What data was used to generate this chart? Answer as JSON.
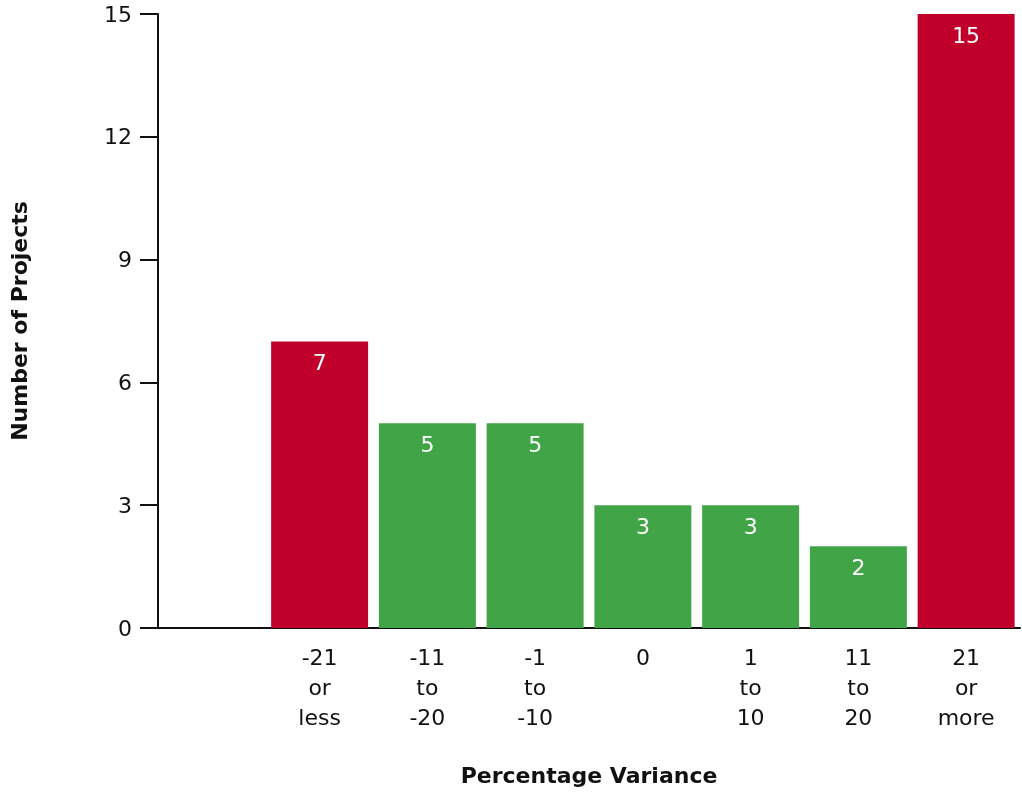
{
  "chart_data": {
    "type": "bar",
    "xlabel": "Percentage Variance",
    "ylabel": "Number of Projects",
    "categories": [
      null,
      "-21 or less",
      "-11 to -20",
      "-1 to -10",
      "0",
      "1 to 10",
      "11 to 20",
      "21 or more"
    ],
    "values": [
      null,
      7,
      5,
      5,
      3,
      3,
      2,
      15
    ],
    "colors": [
      null,
      "#c0002a",
      "#41a547",
      "#41a547",
      "#41a547",
      "#41a547",
      "#41a547",
      "#c0002a"
    ],
    "ylim": [
      0,
      15
    ],
    "yticks": [
      0,
      3,
      6,
      9,
      12,
      15
    ],
    "data_labels": true
  }
}
